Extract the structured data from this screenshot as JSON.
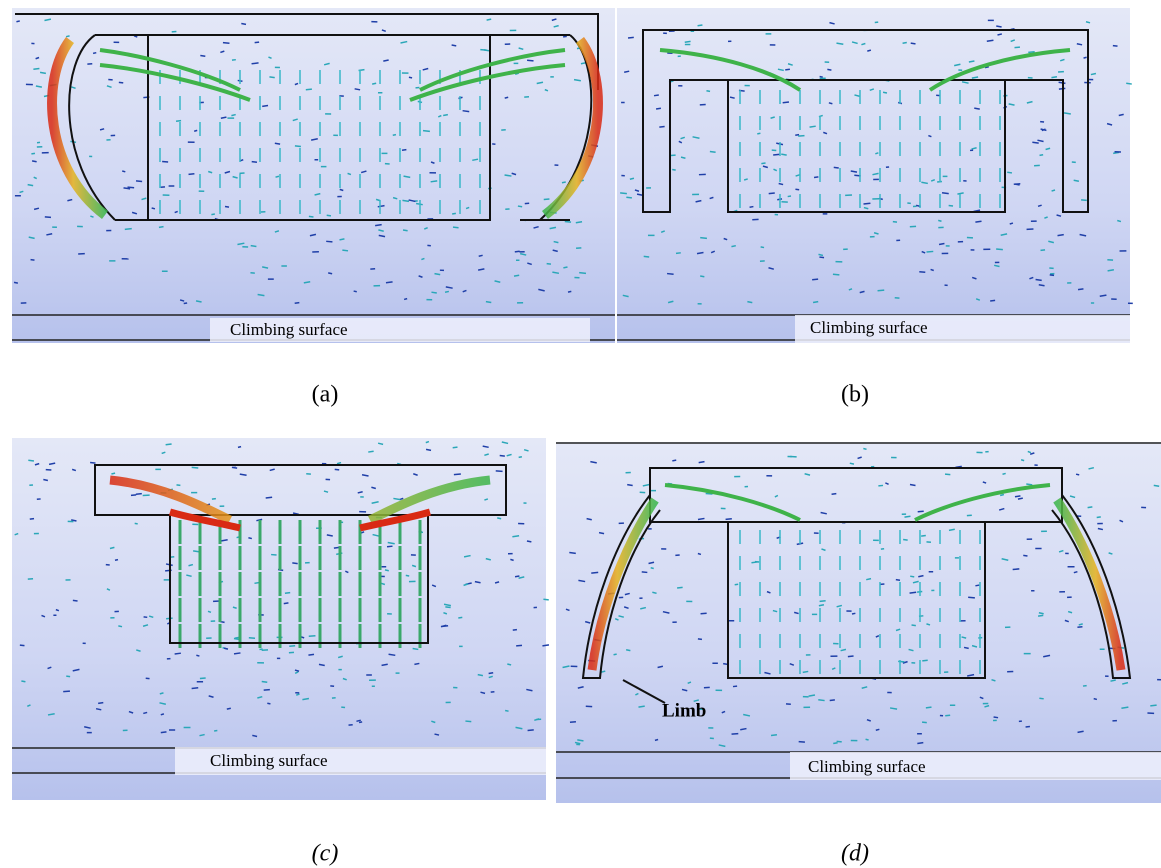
{
  "panels": [
    {
      "caption": "(a)",
      "surface_label": "Climbing surface"
    },
    {
      "caption": "(b)",
      "surface_label": "Climbing surface"
    },
    {
      "caption": "(c)",
      "surface_label": "Climbing surface"
    },
    {
      "caption": "(d)",
      "surface_label": "Climbing surface"
    }
  ],
  "annotation": "Limb"
}
